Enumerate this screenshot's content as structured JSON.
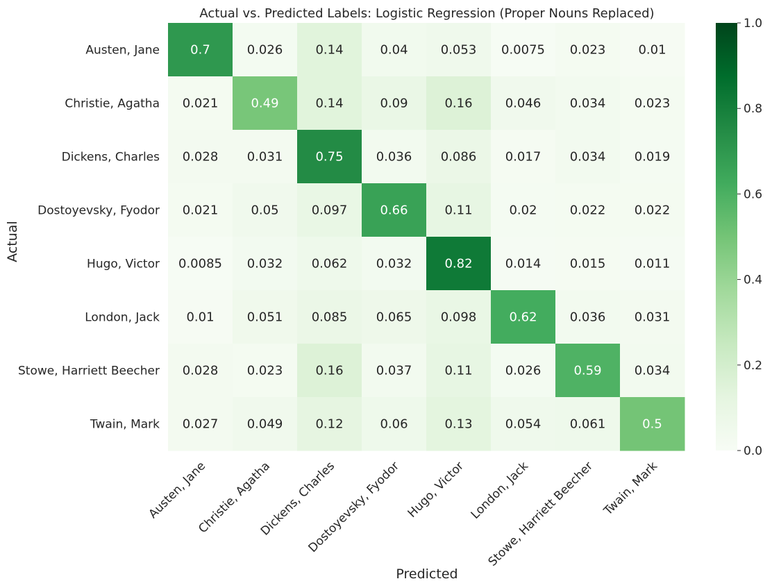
{
  "chart_data": {
    "type": "heatmap",
    "title": "Actual vs. Predicted Labels: Logistic Regression (Proper Nouns Replaced)",
    "xlabel": "Predicted",
    "ylabel": "Actual",
    "row_labels": [
      "Austen, Jane",
      "Christie, Agatha",
      "Dickens, Charles",
      "Dostoyevsky, Fyodor",
      "Hugo, Victor",
      "London, Jack",
      "Stowe, Harriett Beecher",
      "Twain, Mark"
    ],
    "col_labels": [
      "Austen, Jane",
      "Christie, Agatha",
      "Dickens, Charles",
      "Dostoyevsky, Fyodor",
      "Hugo, Victor",
      "London, Jack",
      "Stowe, Harriett Beecher",
      "Twain, Mark"
    ],
    "matrix": [
      [
        "0.7",
        "0.026",
        "0.14",
        "0.04",
        "0.053",
        "0.0075",
        "0.023",
        "0.01"
      ],
      [
        "0.021",
        "0.49",
        "0.14",
        "0.09",
        "0.16",
        "0.046",
        "0.034",
        "0.023"
      ],
      [
        "0.028",
        "0.031",
        "0.75",
        "0.036",
        "0.086",
        "0.017",
        "0.034",
        "0.019"
      ],
      [
        "0.021",
        "0.05",
        "0.097",
        "0.66",
        "0.11",
        "0.02",
        "0.022",
        "0.022"
      ],
      [
        "0.0085",
        "0.032",
        "0.062",
        "0.032",
        "0.82",
        "0.014",
        "0.015",
        "0.011"
      ],
      [
        "0.01",
        "0.051",
        "0.085",
        "0.065",
        "0.098",
        "0.62",
        "0.036",
        "0.031"
      ],
      [
        "0.028",
        "0.023",
        "0.16",
        "0.037",
        "0.11",
        "0.026",
        "0.59",
        "0.034"
      ],
      [
        "0.027",
        "0.049",
        "0.12",
        "0.06",
        "0.13",
        "0.054",
        "0.061",
        "0.5"
      ]
    ],
    "colorbar": {
      "range": [
        0.0,
        1.0
      ],
      "ticks": [
        "0.0",
        "0.2",
        "0.4",
        "0.6",
        "0.8",
        "1.0"
      ]
    },
    "colormap": "Greens"
  }
}
